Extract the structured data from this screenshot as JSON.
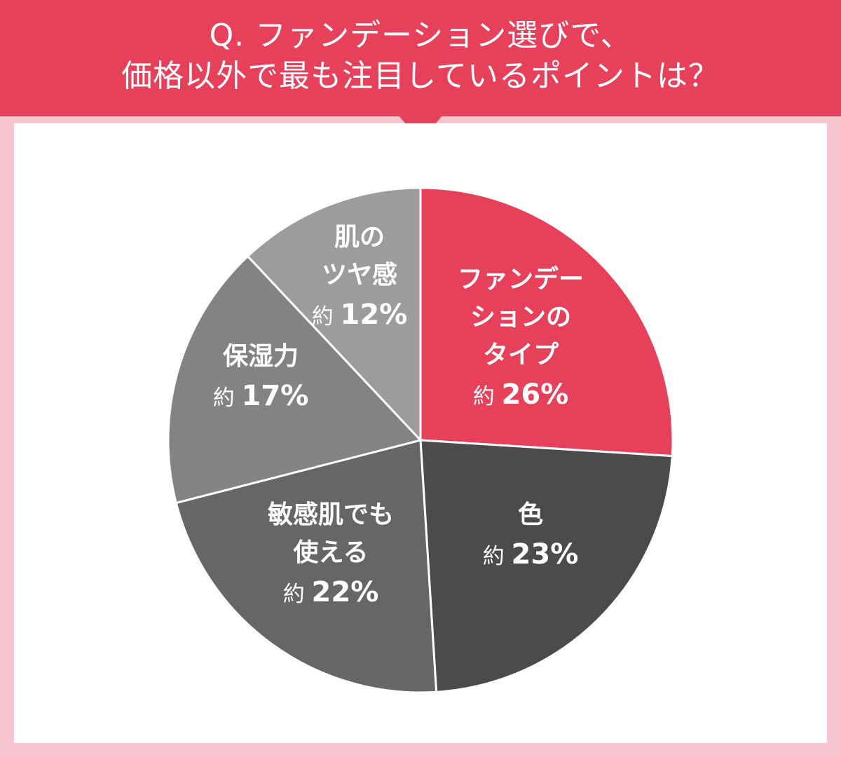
{
  "header": {
    "line1": "Q. ファンデーション選びで、",
    "line2": "価格以外で最も注目しているポイントは？"
  },
  "colors": {
    "header_bg": "#e6405b",
    "frame_bg": "#f6c5cf",
    "panel_bg": "#ffffff",
    "label_text": "#ffffff"
  },
  "chart_data": {
    "type": "pie",
    "title": "Q. ファンデーション選びで、価格以外で最も注目しているポイントは？",
    "slices": [
      {
        "label_lines": [
          "ファンデー",
          "ションの",
          "タイプ"
        ],
        "prefix": "約",
        "value": 26,
        "value_text": "26%",
        "color": "#e6405b"
      },
      {
        "label_lines": [
          "色"
        ],
        "prefix": "約",
        "value": 23,
        "value_text": "23%",
        "color": "#4b4b4b"
      },
      {
        "label_lines": [
          "敏感肌でも",
          "使える"
        ],
        "prefix": "約",
        "value": 22,
        "value_text": "22%",
        "color": "#666666"
      },
      {
        "label_lines": [
          "保湿力"
        ],
        "prefix": "約",
        "value": 17,
        "value_text": "17%",
        "color": "#838383"
      },
      {
        "label_lines": [
          "肌の",
          "ツヤ感"
        ],
        "prefix": "約",
        "value": 12,
        "value_text": "12%",
        "color": "#9c9c9c"
      }
    ],
    "start": "12 o'clock",
    "direction": "clockwise",
    "legend": "none",
    "labels": "inside slices"
  }
}
